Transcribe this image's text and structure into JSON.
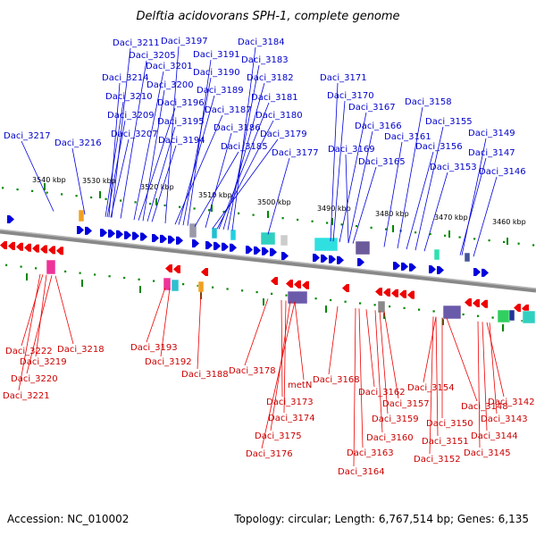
{
  "title": "Delftia acidovorans SPH-1, complete genome",
  "footer": {
    "accession": "Accession: NC_010002",
    "summary": "Topology: circular; Length: 6,767,514 bp; Genes: 6,135"
  },
  "colors": {
    "forward_strand": "#0000dd",
    "reverse_strand": "#ee0000",
    "backbone": "#888888",
    "tick_dots": "#008800"
  },
  "scale_labels": [
    "3540 kbp",
    "3530 kbp",
    "3520 kbp",
    "3510 kbp",
    "3500 kbp",
    "3490 kbp",
    "3480 kbp",
    "3470 kbp",
    "3460 kbp"
  ],
  "top_genes": [
    "Daci_3211",
    "Daci_3197",
    "Daci_3184",
    "Daci_3205",
    "Daci_3191",
    "Daci_3183",
    "Daci_3201",
    "Daci_3214",
    "Daci_3190",
    "Daci_3182",
    "Daci_3171",
    "Daci_3200",
    "Daci_3189",
    "Daci_3210",
    "Daci_3181",
    "Daci_3170",
    "Daci_3196",
    "Daci_3158",
    "Daci_3167",
    "Daci_3187",
    "Daci_3209",
    "Daci_3180",
    "Daci_3195",
    "Daci_3155",
    "Daci_3166",
    "Daci_3186",
    "Daci_3207",
    "Daci_3179",
    "Daci_3149",
    "Daci_3217",
    "Daci_3161",
    "Daci_3194",
    "Daci_3185",
    "Daci_3216",
    "Daci_3156",
    "Daci_3169",
    "Daci_3177",
    "Daci_3147",
    "Daci_3165",
    "Daci_3153",
    "Daci_3146"
  ],
  "bottom_genes": [
    "Daci_3222",
    "Daci_3218",
    "Daci_3193",
    "Daci_3219",
    "Daci_3192",
    "Daci_3188",
    "Daci_3220",
    "Daci_3178",
    "Daci_3168",
    "Daci_3221",
    "metN",
    "Daci_3154",
    "Daci_3162",
    "Daci_3142",
    "Daci_3173",
    "Daci_3157",
    "Daci_3148",
    "Daci_3174",
    "Daci_3159",
    "Daci_3150",
    "Daci_3143",
    "Daci_3160",
    "Daci_3144",
    "Daci_3175",
    "Daci_3151",
    "Daci_3176",
    "Daci_3163",
    "Daci_3145",
    "Daci_3152",
    "Daci_3164"
  ]
}
